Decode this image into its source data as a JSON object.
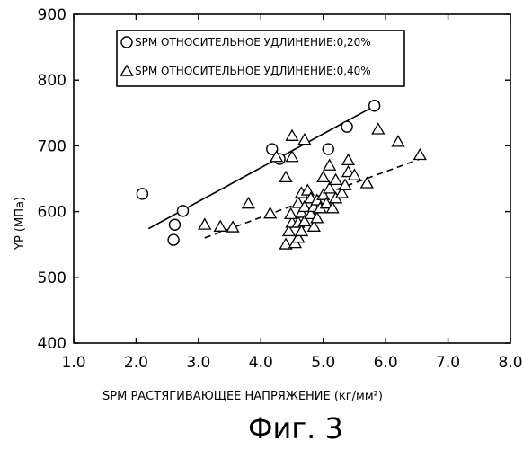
{
  "chart_data": {
    "type": "scatter",
    "xlabel": "SPM РАСТЯГИВАЮЩЕЕ НАПРЯЖЕНИЕ (кг/мм²)",
    "ylabel": "YP (MПa)",
    "xlim": [
      1.0,
      8.0
    ],
    "ylim": [
      400,
      900
    ],
    "xticks": [
      "1.0",
      "2.0",
      "3.0",
      "4.0",
      "5.0",
      "6.0",
      "7.0",
      "8.0"
    ],
    "yticks": [
      "400",
      "500",
      "600",
      "700",
      "800",
      "900"
    ],
    "grid": false,
    "legend_position": "top-left",
    "series": [
      {
        "name": "SPM ОТНОСИТЕЛЬНОЕ УДЛИНЕНИЕ:0,20%",
        "marker": "circle",
        "points": [
          [
            2.1,
            627
          ],
          [
            2.6,
            557
          ],
          [
            2.62,
            580
          ],
          [
            2.75,
            601
          ],
          [
            4.18,
            695
          ],
          [
            4.3,
            680
          ],
          [
            5.08,
            695
          ],
          [
            5.38,
            729
          ],
          [
            5.82,
            761
          ]
        ],
        "fit_line": {
          "style": "solid",
          "from": [
            2.2,
            574
          ],
          "to": [
            5.85,
            762
          ]
        }
      },
      {
        "name": "SPM ОТНОСИТЕЛЬНОЕ УДЛИНЕНИЕ:0,40%",
        "marker": "triangle",
        "points": [
          [
            3.1,
            580
          ],
          [
            3.35,
            577
          ],
          [
            3.55,
            576
          ],
          [
            3.8,
            612
          ],
          [
            4.15,
            597
          ],
          [
            4.25,
            683
          ],
          [
            4.4,
            652
          ],
          [
            4.5,
            715
          ],
          [
            4.5,
            683
          ],
          [
            4.7,
            709
          ],
          [
            5.88,
            725
          ],
          [
            6.2,
            706
          ],
          [
            6.55,
            686
          ],
          [
            4.4,
            550
          ],
          [
            4.45,
            570
          ],
          [
            4.5,
            583
          ],
          [
            4.48,
            596
          ],
          [
            4.55,
            552
          ],
          [
            4.6,
            560
          ],
          [
            4.6,
            583
          ],
          [
            4.65,
            570
          ],
          [
            4.65,
            598
          ],
          [
            4.6,
            613
          ],
          [
            4.65,
            628
          ],
          [
            4.7,
            585
          ],
          [
            4.7,
            607
          ],
          [
            4.75,
            632
          ],
          [
            4.8,
            596
          ],
          [
            4.8,
            620
          ],
          [
            4.85,
            577
          ],
          [
            4.85,
            607
          ],
          [
            4.9,
            590
          ],
          [
            4.9,
            617
          ],
          [
            4.95,
            605
          ],
          [
            5.0,
            625
          ],
          [
            5.0,
            652
          ],
          [
            5.05,
            612
          ],
          [
            5.1,
            635
          ],
          [
            5.1,
            670
          ],
          [
            5.15,
            605
          ],
          [
            5.2,
            620
          ],
          [
            5.2,
            648
          ],
          [
            5.3,
            628
          ],
          [
            5.35,
            640
          ],
          [
            5.4,
            660
          ],
          [
            5.4,
            678
          ],
          [
            5.5,
            655
          ],
          [
            5.7,
            643
          ]
        ],
        "fit_line": {
          "style": "dashed",
          "from": [
            3.1,
            560
          ],
          "to": [
            6.55,
            680
          ]
        }
      }
    ]
  },
  "figure_caption": "Фиг. 3",
  "colors": {
    "ink": "#000000",
    "background": "#ffffff"
  }
}
